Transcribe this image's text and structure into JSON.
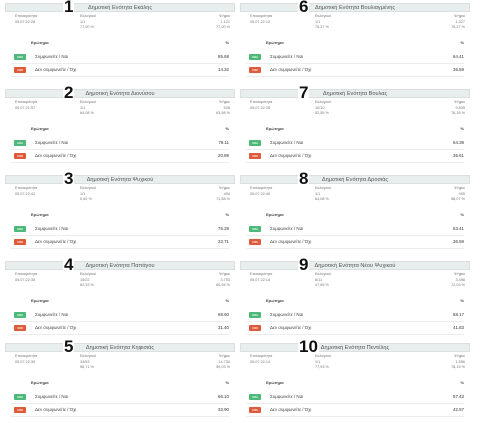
{
  "headers": {
    "date": "Επικαιρότητα",
    "reg": "Εκλογικός κατάλογος",
    "pct": "%",
    "question": "Ερώτημα"
  },
  "labels": {
    "yes": "Συμφωνείτε / Ναι",
    "no": "Δεν συμφωνείτε / Όχι",
    "yes_badge": "ΝΑΙ",
    "no_badge": "ΟΧΙ"
  },
  "panels": [
    {
      "number": "1",
      "title": "Δημοτική Ενότητα Εκάλης",
      "date": "05.07.22:28",
      "c2a": "Εκλογικοί",
      "c2b": "1/1",
      "c2c": "77,00 %",
      "c3a": "Ψήφοι",
      "c3b": "1.121",
      "c3c": "77,00 %",
      "yes": "85.68",
      "no": "14.32"
    },
    {
      "number": "6",
      "title": "Δημοτική Ενότητα Βουλιαγμένης",
      "date": "05.07.22:12",
      "c2a": "Εκλογικοί",
      "c2b": "1/1",
      "c2c": "75,27 %",
      "c3a": "Ψήφοι",
      "c3b": "1.327",
      "c3c": "75,27 %",
      "yes": "64.41",
      "no": "35.59"
    },
    {
      "number": "2",
      "title": "Δημοτική Ενότητα Διονύσου",
      "date": "05.07.21:57",
      "c2a": "Εκλογικοί",
      "c2b": "1/1",
      "c2c": "64,08 %",
      "c3a": "Ψήφοι",
      "c3b": "538",
      "c3c": "63,98 %",
      "yes": "79.11",
      "no": "20.89"
    },
    {
      "number": "7",
      "title": "Δημοτική Ενότητα Βουλας",
      "date": "05.07.22:28",
      "c2a": "Εκλογικοί",
      "c2b": "10/10",
      "c2c": "52,55 %",
      "c3a": "Ψήφοι",
      "c3b": "9.835",
      "c3c": "76,16 %",
      "yes": "64.39",
      "no": "35.61"
    },
    {
      "number": "3",
      "title": "Δημοτική Ενότητα Ψυχικού",
      "date": "05.07.22:41",
      "c2a": "Εκλογικοί",
      "c2b": "1/1",
      "c2c": "0,40 %",
      "c3a": "Ψήφοι",
      "c3b": "494",
      "c3c": "71,58 %",
      "yes": "76.29",
      "no": "23.71"
    },
    {
      "number": "8",
      "title": "Δημοτική Ενότητα Δροσιάς",
      "date": "05.07.22:40",
      "c2a": "Εκλογικοί",
      "c2b": "1/1",
      "c2c": "64,08 %",
      "c3a": "Ψήφοι",
      "c3b": "495",
      "c3c": "68,07 %",
      "yes": "63.41",
      "no": "36.59"
    },
    {
      "number": "4",
      "title": "Δημοτική Ενότητα Παπάγου",
      "date": "05.07.22:35",
      "c2a": "Εκλογικοί",
      "c2b": "15/22",
      "c2c": "62,33 %",
      "c3a": "Ψήφοι",
      "c3b": "3.753",
      "c3c": "60,94 %",
      "yes": "68.60",
      "no": "31.40"
    },
    {
      "number": "9",
      "title": "Δημοτική Ενότητα Νέου Ψυχικού",
      "date": "05.07.22:14",
      "c2a": "Εκλογικοί",
      "c2b": "8/11",
      "c2c": "47,89 %",
      "c3a": "Ψήφοι",
      "c3b": "3.498",
      "c3c": "72,03 %",
      "yes": "58.17",
      "no": "41.83"
    },
    {
      "number": "5",
      "title": "Δημοτική Ενότητα Κηφισιάς",
      "date": "05.07.22:35",
      "c2a": "Εκλογικοί",
      "c2b": "34/53",
      "c2c": "58,71 %",
      "c3a": "Ψήφοι",
      "c3b": "14.730",
      "c3c": "59,03 %",
      "yes": "66.10",
      "no": "33.90"
    },
    {
      "number": "10",
      "title": "Δημοτική Ενότητα Πεντέλης",
      "date": "05.07.22:14",
      "c2a": "Εκλογικοί",
      "c2b": "1/1",
      "c2c": "77,93 %",
      "c3a": "Ψήφοι",
      "c3b": "1.556",
      "c3c": "78,15 %",
      "yes": "57.43",
      "no": "42.57"
    }
  ]
}
